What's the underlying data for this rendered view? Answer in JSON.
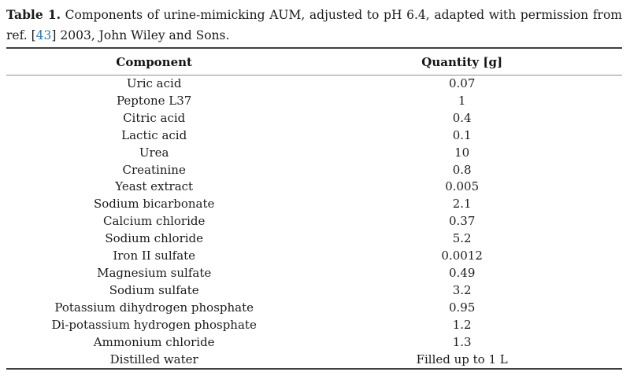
{
  "page": {
    "background_color": "#ffffff",
    "text_color": "#1b1b1b",
    "link_color": "#2b7bb8",
    "rule_dark_color": "#3f3f3f",
    "rule_light_color": "#8e8e8e"
  },
  "caption": {
    "label": "Table 1.",
    "line1_rest": " Components of urine-mimicking AUM, adjusted to pH 6.4, adapted with permission from",
    "line2_before_ref": "ref. [",
    "ref_number": "43",
    "line2_after_ref": "] 2003, John Wiley and Sons."
  },
  "table": {
    "columns": [
      "Component",
      "Quantity [g]"
    ],
    "rows": [
      {
        "component": "Uric acid",
        "quantity": "0.07"
      },
      {
        "component": "Peptone L37",
        "quantity": "1"
      },
      {
        "component": "Citric acid",
        "quantity": "0.4"
      },
      {
        "component": "Lactic acid",
        "quantity": "0.1"
      },
      {
        "component": "Urea",
        "quantity": "10"
      },
      {
        "component": "Creatinine",
        "quantity": "0.8"
      },
      {
        "component": "Yeast extract",
        "quantity": "0.005"
      },
      {
        "component": "Sodium bicarbonate",
        "quantity": "2.1"
      },
      {
        "component": "Calcium chloride",
        "quantity": "0.37"
      },
      {
        "component": "Sodium chloride",
        "quantity": "5.2"
      },
      {
        "component": "Iron II sulfate",
        "quantity": "0.0012"
      },
      {
        "component": "Magnesium sulfate",
        "quantity": "0.49"
      },
      {
        "component": "Sodium sulfate",
        "quantity": "3.2"
      },
      {
        "component": "Potassium dihydrogen phosphate",
        "quantity": "0.95"
      },
      {
        "component": "Di-potassium hydrogen phosphate",
        "quantity": "1.2"
      },
      {
        "component": "Ammonium chloride",
        "quantity": "1.3"
      },
      {
        "component": "Distilled water",
        "quantity": "Filled up to 1 L"
      }
    ]
  }
}
